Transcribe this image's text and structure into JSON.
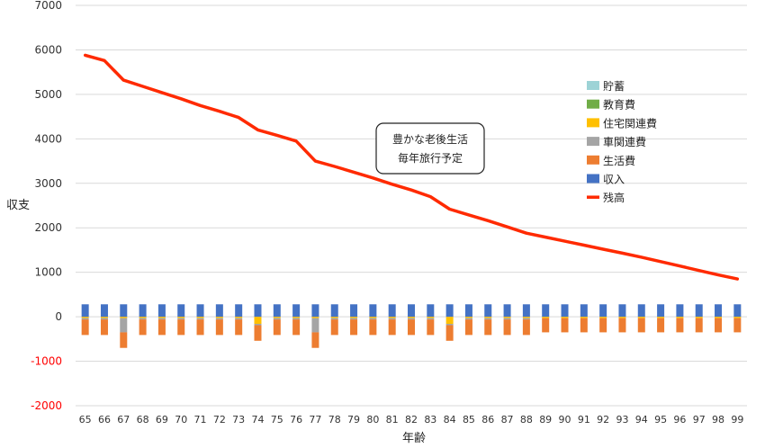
{
  "chart_data": {
    "type": "bar",
    "title": "",
    "xlabel": "年齢",
    "ylabel": "収支",
    "ylim": [
      -2000,
      7000
    ],
    "yticks": [
      -2000,
      -1000,
      0,
      1000,
      2000,
      3000,
      4000,
      5000,
      6000,
      7000
    ],
    "ytick_labels": [
      "-2000",
      "-1000",
      "0",
      "1000",
      "2000",
      "3000",
      "4000",
      "5000",
      "6000",
      "7000"
    ],
    "negative_tick_color": "#FF0000",
    "grid": true,
    "stacked": true,
    "legend_position": "right",
    "categories": [
      "65",
      "66",
      "67",
      "68",
      "69",
      "70",
      "71",
      "72",
      "73",
      "74",
      "75",
      "76",
      "77",
      "78",
      "79",
      "80",
      "81",
      "82",
      "83",
      "84",
      "85",
      "86",
      "87",
      "88",
      "89",
      "90",
      "91",
      "92",
      "93",
      "94",
      "95",
      "96",
      "97",
      "98",
      "99"
    ],
    "series": [
      {
        "name": "貯蓄",
        "kind": "bar",
        "color": "#9DD3D6",
        "values": [
          0,
          0,
          0,
          0,
          0,
          0,
          0,
          0,
          0,
          0,
          0,
          0,
          0,
          0,
          0,
          0,
          0,
          0,
          0,
          0,
          0,
          0,
          0,
          0,
          0,
          0,
          0,
          0,
          0,
          0,
          0,
          0,
          0,
          0,
          0
        ]
      },
      {
        "name": "教育費",
        "kind": "bar",
        "color": "#70AD47",
        "values": [
          0,
          0,
          0,
          0,
          0,
          0,
          0,
          0,
          0,
          0,
          0,
          0,
          0,
          0,
          0,
          0,
          0,
          0,
          0,
          0,
          0,
          0,
          0,
          0,
          0,
          0,
          0,
          0,
          0,
          0,
          0,
          0,
          0,
          0,
          0
        ]
      },
      {
        "name": "住宅関連費",
        "kind": "bar",
        "color": "#FFC000",
        "values": [
          -30,
          -30,
          -30,
          -30,
          -30,
          -30,
          -30,
          -30,
          -30,
          -160,
          -30,
          -30,
          -30,
          -30,
          -30,
          -30,
          -30,
          -30,
          -30,
          -160,
          -30,
          -30,
          -30,
          -30,
          -30,
          -30,
          -30,
          -30,
          -30,
          -30,
          -30,
          -30,
          -30,
          -30,
          -30
        ]
      },
      {
        "name": "車関連費",
        "kind": "bar",
        "color": "#A5A5A5",
        "values": [
          -30,
          -30,
          -320,
          -30,
          -30,
          -30,
          -30,
          -30,
          -30,
          -30,
          -30,
          -30,
          -320,
          -30,
          -30,
          -30,
          -30,
          -30,
          -30,
          -30,
          -30,
          -30,
          -30,
          -30,
          0,
          0,
          0,
          0,
          0,
          0,
          0,
          0,
          0,
          0,
          0
        ]
      },
      {
        "name": "生活費",
        "kind": "bar",
        "color": "#ED7D31",
        "values": [
          -350,
          -350,
          -350,
          -350,
          -350,
          -350,
          -350,
          -350,
          -350,
          -350,
          -350,
          -350,
          -350,
          -350,
          -350,
          -350,
          -350,
          -350,
          -350,
          -350,
          -350,
          -350,
          -350,
          -350,
          -320,
          -320,
          -320,
          -320,
          -320,
          -320,
          -320,
          -320,
          -320,
          -320,
          -320
        ]
      },
      {
        "name": "収入",
        "kind": "bar",
        "color": "#4472C4",
        "values": [
          280,
          280,
          280,
          280,
          280,
          280,
          280,
          280,
          280,
          280,
          280,
          280,
          280,
          280,
          280,
          280,
          280,
          280,
          280,
          280,
          280,
          280,
          280,
          280,
          280,
          280,
          280,
          280,
          280,
          280,
          280,
          280,
          280,
          280,
          280
        ]
      },
      {
        "name": "残高",
        "kind": "line",
        "color": "#FF2A00",
        "values": [
          5880,
          5760,
          5320,
          5180,
          5040,
          4900,
          4750,
          4620,
          4480,
          4200,
          4080,
          3950,
          3500,
          3380,
          3250,
          3120,
          2980,
          2850,
          2700,
          2420,
          2290,
          2160,
          2020,
          1880,
          1790,
          1700,
          1610,
          1520,
          1430,
          1340,
          1240,
          1140,
          1040,
          940,
          850
        ]
      }
    ],
    "legend_order": [
      "貯蓄",
      "教育費",
      "住宅関連費",
      "車関連費",
      "生活費",
      "収入",
      "残高"
    ],
    "annotation": {
      "lines": [
        "豊かな老後生活",
        "毎年旅行予定"
      ]
    }
  }
}
